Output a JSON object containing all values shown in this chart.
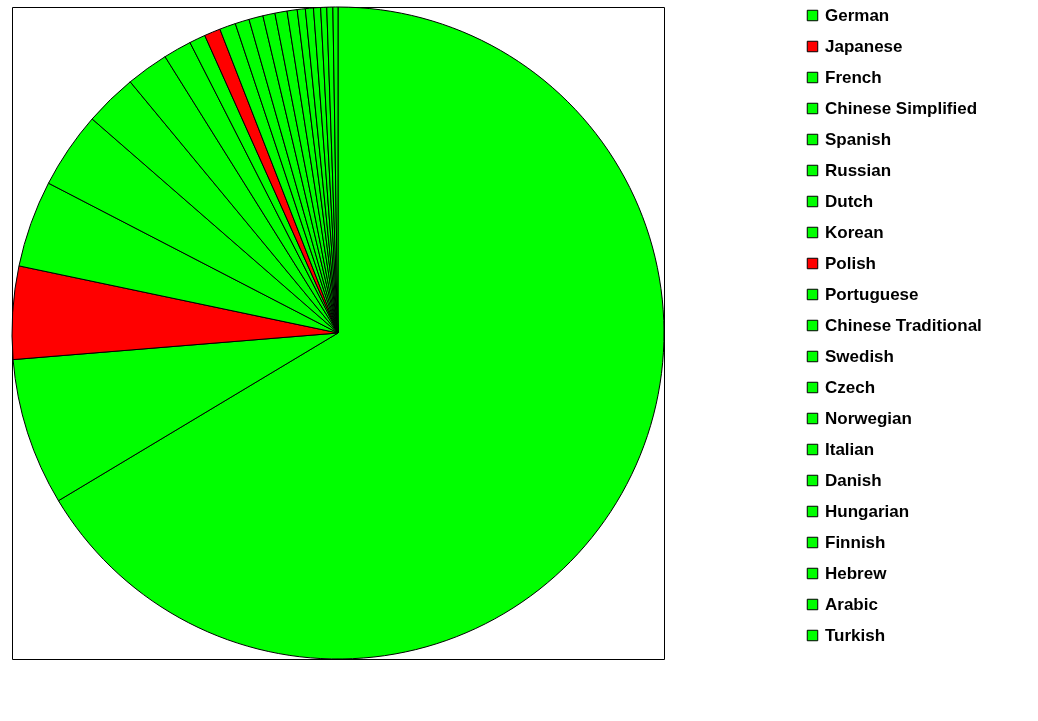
{
  "chart_data": {
    "type": "pie",
    "legend": "right",
    "categories": [
      null,
      "German",
      "Japanese",
      "French",
      "Chinese Simplified",
      "Spanish",
      "Russian",
      "Dutch",
      "Korean",
      "Polish",
      "Portuguese",
      "Chinese Traditional",
      "Swedish",
      "Czech",
      "Norwegian",
      "Italian",
      "Danish",
      "Hungarian",
      "Finnish",
      "Hebrew",
      "Arabic",
      "Turkish"
    ],
    "values": [
      66.4,
      7.3,
      4.6,
      4.3,
      3.8,
      2.6,
      2.1,
      1.4,
      0.8,
      0.8,
      0.8,
      0.7,
      0.7,
      0.6,
      0.6,
      0.5,
      0.4,
      0.4,
      0.35,
      0.3,
      0.3,
      0.25
    ],
    "colors": [
      "#00ff00",
      "#00ff00",
      "#ff0000",
      "#00ff00",
      "#00ff00",
      "#00ff00",
      "#00ff00",
      "#00ff00",
      "#00ff00",
      "#ff0000",
      "#00ff00",
      "#00ff00",
      "#00ff00",
      "#00ff00",
      "#00ff00",
      "#00ff00",
      "#00ff00",
      "#00ff00",
      "#00ff00",
      "#00ff00",
      "#00ff00",
      "#00ff00"
    ]
  }
}
